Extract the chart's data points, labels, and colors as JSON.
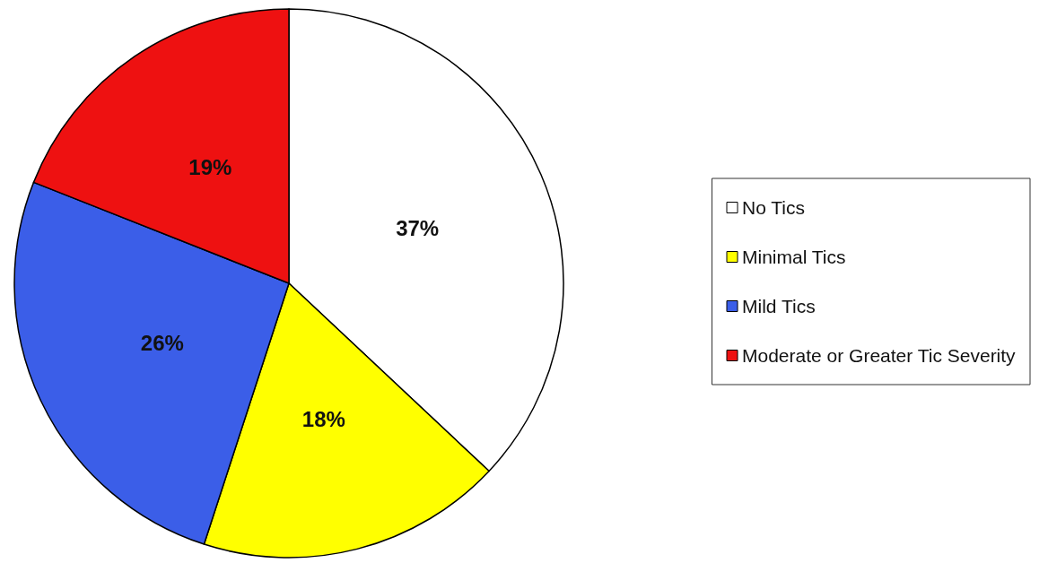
{
  "chart_data": {
    "type": "pie",
    "categories": [
      "No Tics",
      "Minimal Tics",
      "Mild Tics",
      "Moderate or Greater Tic Severity"
    ],
    "values": [
      37,
      18,
      26,
      19
    ],
    "colors": [
      "#ffffff",
      "#ffff00",
      "#3b5ee8",
      "#ee1111"
    ],
    "value_labels": [
      "37%",
      "18%",
      "26%",
      "19%"
    ],
    "legend": "right"
  }
}
